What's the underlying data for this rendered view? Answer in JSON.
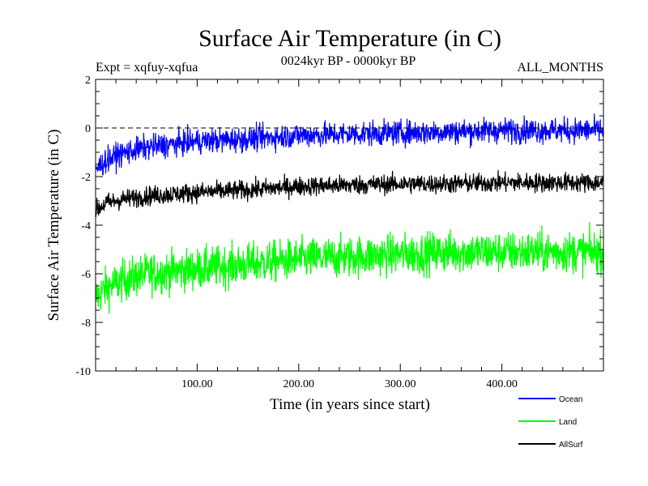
{
  "chart_data": {
    "type": "line",
    "title": "Surface Air Temperature (in C)",
    "subtitle_left": "Expt = xqfuy-xqfua",
    "subtitle_center": "0024kyr BP - 0000kyr BP",
    "subtitle_right": "ALL_MONTHS",
    "xlabel": "Time (in years since start)",
    "ylabel": "Surface Air Temperature (in C)",
    "xlim": [
      0,
      500
    ],
    "ylim": [
      -10,
      2
    ],
    "x_ticks": [
      100,
      200,
      300,
      400
    ],
    "x_tick_labels": [
      "100.00",
      "200.00",
      "300.00",
      "400.00"
    ],
    "y_ticks": [
      -10,
      -8,
      -6,
      -4,
      -2,
      0,
      2
    ],
    "y_tick_labels": [
      "-10",
      "-8",
      "-6",
      "-4",
      "-2",
      "0",
      "2"
    ],
    "zero_line": 0,
    "legend_position": "bottom-right",
    "series": [
      {
        "name": "Ocean",
        "color": "#0000ff",
        "trend_x": [
          0,
          10,
          25,
          50,
          100,
          150,
          200,
          250,
          300,
          350,
          400,
          450,
          500
        ],
        "trend_y": [
          -1.7,
          -1.35,
          -1.05,
          -0.8,
          -0.55,
          -0.45,
          -0.3,
          -0.25,
          -0.2,
          -0.15,
          -0.1,
          -0.1,
          -0.1
        ],
        "noise_amplitude": 0.45
      },
      {
        "name": "Land",
        "color": "#00ff00",
        "trend_x": [
          0,
          10,
          25,
          50,
          100,
          150,
          200,
          250,
          300,
          350,
          400,
          450,
          500
        ],
        "trend_y": [
          -7.0,
          -6.6,
          -6.3,
          -6.0,
          -5.8,
          -5.6,
          -5.4,
          -5.3,
          -5.2,
          -5.1,
          -5.1,
          -5.1,
          -5.1
        ],
        "noise_amplitude": 0.75
      },
      {
        "name": "AllSurf",
        "color": "#000000",
        "trend_x": [
          0,
          10,
          25,
          50,
          100,
          150,
          200,
          250,
          300,
          350,
          400,
          450,
          500
        ],
        "trend_y": [
          -3.4,
          -3.1,
          -2.95,
          -2.8,
          -2.65,
          -2.55,
          -2.4,
          -2.35,
          -2.3,
          -2.3,
          -2.25,
          -2.25,
          -2.25
        ],
        "noise_amplitude": 0.35
      }
    ]
  }
}
